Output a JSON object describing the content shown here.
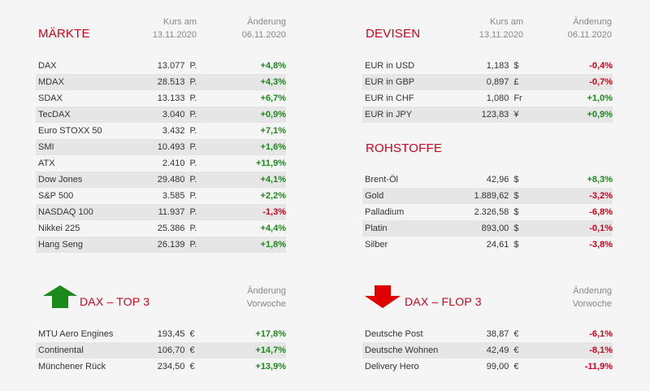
{
  "colors": {
    "positive": "#1a8a1a",
    "negative": "#d0021b",
    "title": "#d0021b",
    "arrow_up": "#1a8a1a",
    "arrow_down": "#e00000"
  },
  "maerkte": {
    "title": "MÄRKTE",
    "col_kurs_line1": "Kurs am",
    "col_kurs_line2": "13.11.2020",
    "col_chg_line1": "Änderung",
    "col_chg_line2": "06.11.2020",
    "rows": [
      {
        "name": "DAX",
        "value": "13.077",
        "unit": "P.",
        "change": "+4,8%",
        "dir": "pos"
      },
      {
        "name": "MDAX",
        "value": "28.513",
        "unit": "P.",
        "change": "+4,3%",
        "dir": "pos"
      },
      {
        "name": "SDAX",
        "value": "13.133",
        "unit": "P.",
        "change": "+6,7%",
        "dir": "pos"
      },
      {
        "name": "TecDAX",
        "value": "3.040",
        "unit": "P.",
        "change": "+0,9%",
        "dir": "pos"
      },
      {
        "name": "Euro STOXX 50",
        "value": "3.432",
        "unit": "P.",
        "change": "+7,1%",
        "dir": "pos"
      },
      {
        "name": "SMI",
        "value": "10.493",
        "unit": "P.",
        "change": "+1,6%",
        "dir": "pos"
      },
      {
        "name": "ATX",
        "value": "2.410",
        "unit": "P.",
        "change": "+11,9%",
        "dir": "pos"
      },
      {
        "name": "Dow Jones",
        "value": "29.480",
        "unit": "P.",
        "change": "+4,1%",
        "dir": "pos"
      },
      {
        "name": "S&P 500",
        "value": "3.585",
        "unit": "P.",
        "change": "+2,2%",
        "dir": "pos"
      },
      {
        "name": "NASDAQ 100",
        "value": "11.937",
        "unit": "P.",
        "change": "-1,3%",
        "dir": "neg"
      },
      {
        "name": "Nikkei 225",
        "value": "25.386",
        "unit": "P.",
        "change": "+4,4%",
        "dir": "pos"
      },
      {
        "name": "Hang Seng",
        "value": "26.139",
        "unit": "P.",
        "change": "+1,8%",
        "dir": "pos"
      }
    ]
  },
  "devisen": {
    "title": "DEVISEN",
    "col_kurs_line1": "Kurs am",
    "col_kurs_line2": "13.11.2020",
    "col_chg_line1": "Änderung",
    "col_chg_line2": "06.11.2020",
    "rows": [
      {
        "name": "EUR in USD",
        "value": "1,183",
        "unit": "$",
        "change": "-0,4%",
        "dir": "neg"
      },
      {
        "name": "EUR in GBP",
        "value": "0,897",
        "unit": "£",
        "change": "-0,7%",
        "dir": "neg"
      },
      {
        "name": "EUR in CHF",
        "value": "1,080",
        "unit": "Fr",
        "change": "+1,0%",
        "dir": "pos"
      },
      {
        "name": "EUR in JPY",
        "value": "123,83",
        "unit": "¥",
        "change": "+0,9%",
        "dir": "pos"
      }
    ]
  },
  "rohstoffe": {
    "title": "ROHSTOFFE",
    "rows": [
      {
        "name": "Brent-Öl",
        "value": "42,96",
        "unit": "$",
        "change": "+8,3%",
        "dir": "pos"
      },
      {
        "name": "Gold",
        "value": "1.889,62",
        "unit": "$",
        "change": "-3,2%",
        "dir": "neg"
      },
      {
        "name": "Palladium",
        "value": "2.326,58",
        "unit": "$",
        "change": "-6,8%",
        "dir": "neg"
      },
      {
        "name": "Platin",
        "value": "893,00",
        "unit": "$",
        "change": "-0,1%",
        "dir": "neg"
      },
      {
        "name": "Silber",
        "value": "24,61",
        "unit": "$",
        "change": "-3,8%",
        "dir": "neg"
      }
    ]
  },
  "top3": {
    "title": "DAX – TOP 3",
    "col_chg_line1": "Änderung",
    "col_chg_line2": "Vorwoche",
    "icon": "arrow-up-icon",
    "rows": [
      {
        "name": "MTU Aero Engines",
        "value": "193,45",
        "unit": "€",
        "change": "+17,8%",
        "dir": "pos"
      },
      {
        "name": "Continental",
        "value": "106,70",
        "unit": "€",
        "change": "+14,7%",
        "dir": "pos"
      },
      {
        "name": "Münchener Rück",
        "value": "234,50",
        "unit": "€",
        "change": "+13,9%",
        "dir": "pos"
      }
    ]
  },
  "flop3": {
    "title": "DAX – FLOP 3",
    "col_chg_line1": "Änderung",
    "col_chg_line2": "Vorwoche",
    "icon": "arrow-down-icon",
    "rows": [
      {
        "name": "Deutsche Post",
        "value": "38,87",
        "unit": "€",
        "change": "-6,1%",
        "dir": "neg"
      },
      {
        "name": "Deutsche Wohnen",
        "value": "42,49",
        "unit": "€",
        "change": "-8,1%",
        "dir": "neg"
      },
      {
        "name": "Delivery Hero",
        "value": "99,00",
        "unit": "€",
        "change": "-11,9%",
        "dir": "neg"
      }
    ]
  }
}
